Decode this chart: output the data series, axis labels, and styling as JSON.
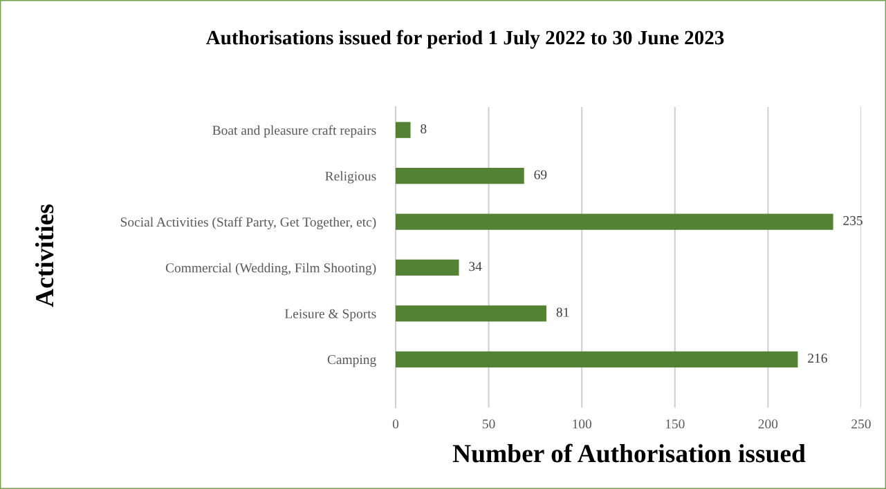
{
  "chart_data": {
    "type": "bar",
    "orientation": "horizontal",
    "title": "Authorisations issued for period 1 July 2022 to 30 June 2023",
    "xlabel": "Number of Authorisation issued",
    "ylabel": "Activities",
    "categories": [
      "Boat and pleasure craft repairs",
      "Religious",
      "Social Activities (Staff Party, Get Together, etc)",
      "Commercial (Wedding, Film Shooting)",
      "Leisure & Sports",
      "Camping"
    ],
    "values": [
      8,
      69,
      235,
      34,
      81,
      216
    ],
    "color": "#548235",
    "xlim": [
      0,
      250
    ],
    "xticks": [
      0,
      50,
      100,
      150,
      200,
      250
    ],
    "grid": "x",
    "data_labels": true
  }
}
